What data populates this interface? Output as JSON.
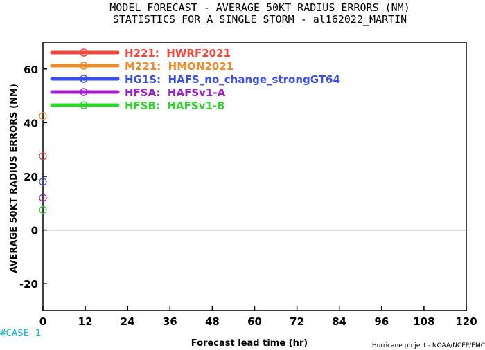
{
  "chart_data": {
    "type": "scatter",
    "title": "MODEL FORECAST - AVERAGE 50KT RADIUS ERRORS (NM)",
    "subtitle": "STATISTICS FOR A SINGLE STORM - al162022_MARTIN",
    "xlabel": "Forecast lead time (hr)",
    "ylabel": "AVERAGE 50KT RADIUS ERRORS (NM)",
    "xlim": [
      0,
      120
    ],
    "ylim": [
      -30,
      70
    ],
    "x_ticks": [
      "0",
      "12",
      "24",
      "36",
      "48",
      "60",
      "72",
      "84",
      "96",
      "108",
      "120"
    ],
    "y_ticks": [
      "-20",
      "0",
      "20",
      "40",
      "60"
    ],
    "zero_line": true,
    "legend_position": "top-left",
    "series": [
      {
        "name": "H221:  HWRF2021",
        "color": "#f0463c",
        "x": [
          0
        ],
        "y": [
          27.5
        ]
      },
      {
        "name": "M221:  HMON2021",
        "color": "#f08c28",
        "x": [
          0
        ],
        "y": [
          42.5
        ]
      },
      {
        "name": "HG1S:  HAFS_no_change_strongGT64",
        "color": "#3c50e6",
        "x": [
          0
        ],
        "y": [
          18
        ]
      },
      {
        "name": "HFSA:  HAFSv1-A",
        "color": "#a020c8",
        "x": [
          0
        ],
        "y": [
          12
        ]
      },
      {
        "name": "HFSB:  HAFSv1-B",
        "color": "#32d232",
        "x": [
          0
        ],
        "y": [
          7.5
        ]
      }
    ],
    "case_label": "#CASE  1",
    "credit": "Hurricane project - NOAA/NCEP/EMC"
  }
}
